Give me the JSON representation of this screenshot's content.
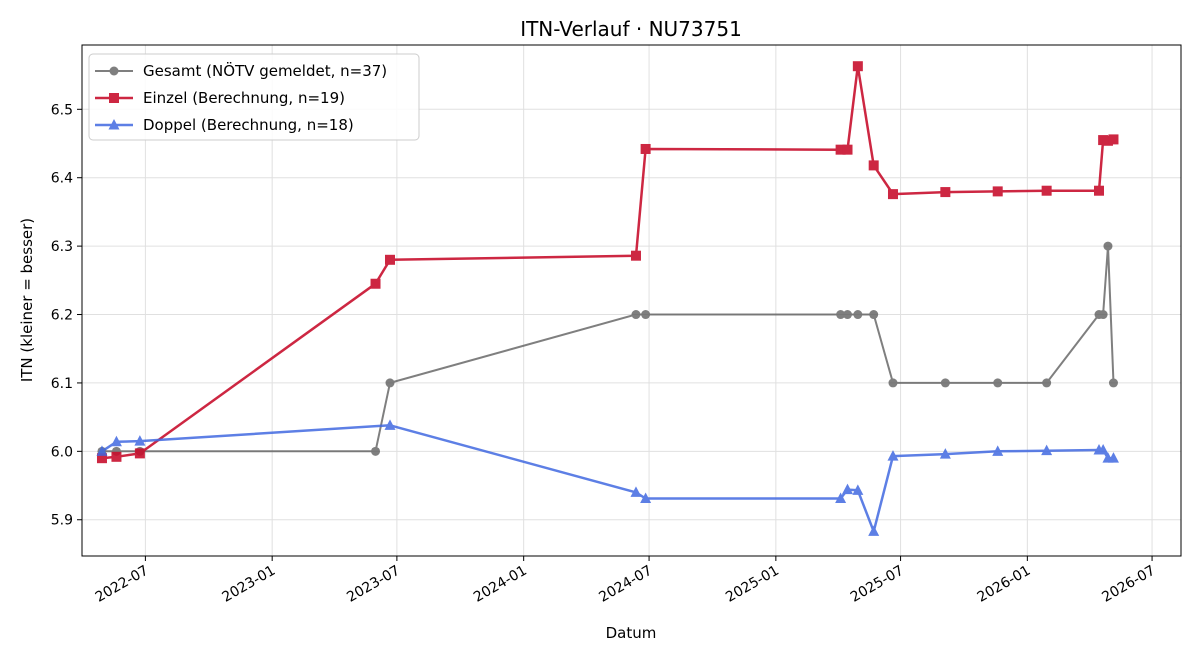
{
  "chart_data": {
    "type": "line",
    "title": "ITN-Verlauf · NU73751",
    "xlabel": "Datum",
    "ylabel": "ITN  (kleiner = besser)",
    "x_range": [
      "2022-03-31",
      "2026-08-12"
    ],
    "y_range": [
      5.847,
      6.594
    ],
    "x_ticks": [
      "2022-07-01",
      "2023-01-01",
      "2023-07-01",
      "2024-01-01",
      "2024-07-01",
      "2025-01-01",
      "2025-07-01",
      "2026-01-01",
      "2026-07-01"
    ],
    "x_tick_labels": [
      "2022-07",
      "2023-01",
      "2023-07",
      "2024-01",
      "2024-07",
      "2025-01",
      "2025-07",
      "2026-01",
      "2026-07"
    ],
    "y_ticks": [
      5.9,
      6.0,
      6.1,
      6.2,
      6.3,
      6.4,
      6.5
    ],
    "y_tick_labels": [
      "5.9",
      "6.0",
      "6.1",
      "6.2",
      "6.3",
      "6.4",
      "6.5"
    ],
    "grid": true,
    "legend_position": "top-left",
    "series": [
      {
        "name": "Gesamt (NÖTV gemeldet, n=37)",
        "color": "#555555",
        "marker": "circle",
        "points": [
          [
            "2022-04-29",
            6.0
          ],
          [
            "2022-05-20",
            6.0
          ],
          [
            "2022-06-23",
            6.0
          ],
          [
            "2023-05-31",
            6.0
          ],
          [
            "2023-06-21",
            6.1
          ],
          [
            "2024-06-12",
            6.2
          ],
          [
            "2024-06-26",
            6.2
          ],
          [
            "2025-04-05",
            6.2
          ],
          [
            "2025-04-15",
            6.2
          ],
          [
            "2025-04-30",
            6.2
          ],
          [
            "2025-05-23",
            6.2
          ],
          [
            "2025-06-20",
            6.1
          ],
          [
            "2025-09-04",
            6.1
          ],
          [
            "2025-11-19",
            6.1
          ],
          [
            "2026-01-29",
            6.1
          ],
          [
            "2026-04-15",
            6.2
          ],
          [
            "2026-04-21",
            6.2
          ],
          [
            "2026-04-28",
            6.3
          ],
          [
            "2026-05-06",
            6.1
          ]
        ]
      },
      {
        "name": "Einzel (Berechnung, n=19)",
        "color": "#c8102e",
        "marker": "square",
        "points": [
          [
            "2022-04-29",
            5.99
          ],
          [
            "2022-05-20",
            5.992
          ],
          [
            "2022-06-23",
            5.997
          ],
          [
            "2023-05-31",
            6.245
          ],
          [
            "2023-06-21",
            6.28
          ],
          [
            "2024-06-12",
            6.286
          ],
          [
            "2024-06-26",
            6.442
          ],
          [
            "2025-04-05",
            6.441
          ],
          [
            "2025-04-15",
            6.441
          ],
          [
            "2025-04-30",
            6.563
          ],
          [
            "2025-05-23",
            6.418
          ],
          [
            "2025-06-20",
            6.376
          ],
          [
            "2025-09-04",
            6.379
          ],
          [
            "2025-11-19",
            6.38
          ],
          [
            "2026-01-29",
            6.381
          ],
          [
            "2026-04-15",
            6.381
          ],
          [
            "2026-04-21",
            6.455
          ],
          [
            "2026-04-28",
            6.454
          ],
          [
            "2026-05-06",
            6.456
          ]
        ]
      },
      {
        "name": "Doppel (Berechnung, n=18)",
        "color": "#4169e1",
        "marker": "triangle",
        "points": [
          [
            "2022-04-29",
            6.0
          ],
          [
            "2022-05-20",
            6.014
          ],
          [
            "2022-06-23",
            6.015
          ],
          [
            "2023-06-21",
            6.038
          ],
          [
            "2024-06-12",
            5.94
          ],
          [
            "2024-06-26",
            5.931
          ],
          [
            "2025-04-05",
            5.931
          ],
          [
            "2025-04-15",
            5.944
          ],
          [
            "2025-04-30",
            5.943
          ],
          [
            "2025-05-23",
            5.883
          ],
          [
            "2025-06-20",
            5.993
          ],
          [
            "2025-09-04",
            5.996
          ],
          [
            "2025-11-19",
            6.0
          ],
          [
            "2026-01-29",
            6.001
          ],
          [
            "2026-04-15",
            6.002
          ],
          [
            "2026-04-21",
            6.002
          ],
          [
            "2026-04-28",
            5.99
          ],
          [
            "2026-05-06",
            5.99
          ]
        ]
      }
    ]
  }
}
